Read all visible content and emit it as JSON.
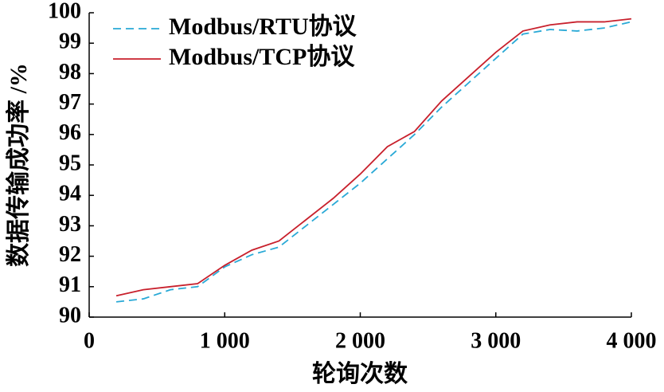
{
  "chart_data": {
    "type": "line",
    "xlabel": "轮询次数",
    "ylabel": "数据传输成功率 /%",
    "x": [
      200,
      400,
      600,
      800,
      1000,
      1200,
      1400,
      1600,
      1800,
      2000,
      2200,
      2400,
      2600,
      2800,
      3000,
      3200,
      3400,
      3600,
      3800,
      4000
    ],
    "series": [
      {
        "name": "Modbus/RTU协议",
        "color": "#29a9d6",
        "linestyle": "dashed",
        "values": [
          90.5,
          90.6,
          90.9,
          91.0,
          91.65,
          92.05,
          92.3,
          93.0,
          93.7,
          94.4,
          95.2,
          96.0,
          96.9,
          97.7,
          98.5,
          99.3,
          99.45,
          99.4,
          99.5,
          99.7
        ]
      },
      {
        "name": "Modbus/TCP协议",
        "color": "#c8202c",
        "linestyle": "solid",
        "values": [
          90.7,
          90.9,
          91.0,
          91.1,
          91.7,
          92.2,
          92.5,
          93.2,
          93.9,
          94.7,
          95.6,
          96.1,
          97.1,
          97.9,
          98.7,
          99.4,
          99.6,
          99.7,
          99.7,
          99.8
        ]
      }
    ],
    "xlim": [
      0,
      4000
    ],
    "xticks": [
      0,
      {
        "value": 1000,
        "label": "1 000"
      },
      {
        "value": 2000,
        "label": "2 000"
      },
      {
        "value": 3000,
        "label": "3 000"
      },
      {
        "value": 4000,
        "label": "4 000"
      }
    ],
    "ylim": [
      90,
      100
    ],
    "yticks": [
      90,
      91,
      92,
      93,
      94,
      95,
      96,
      97,
      98,
      99,
      100
    ],
    "grid": false,
    "legend": "upper left"
  }
}
